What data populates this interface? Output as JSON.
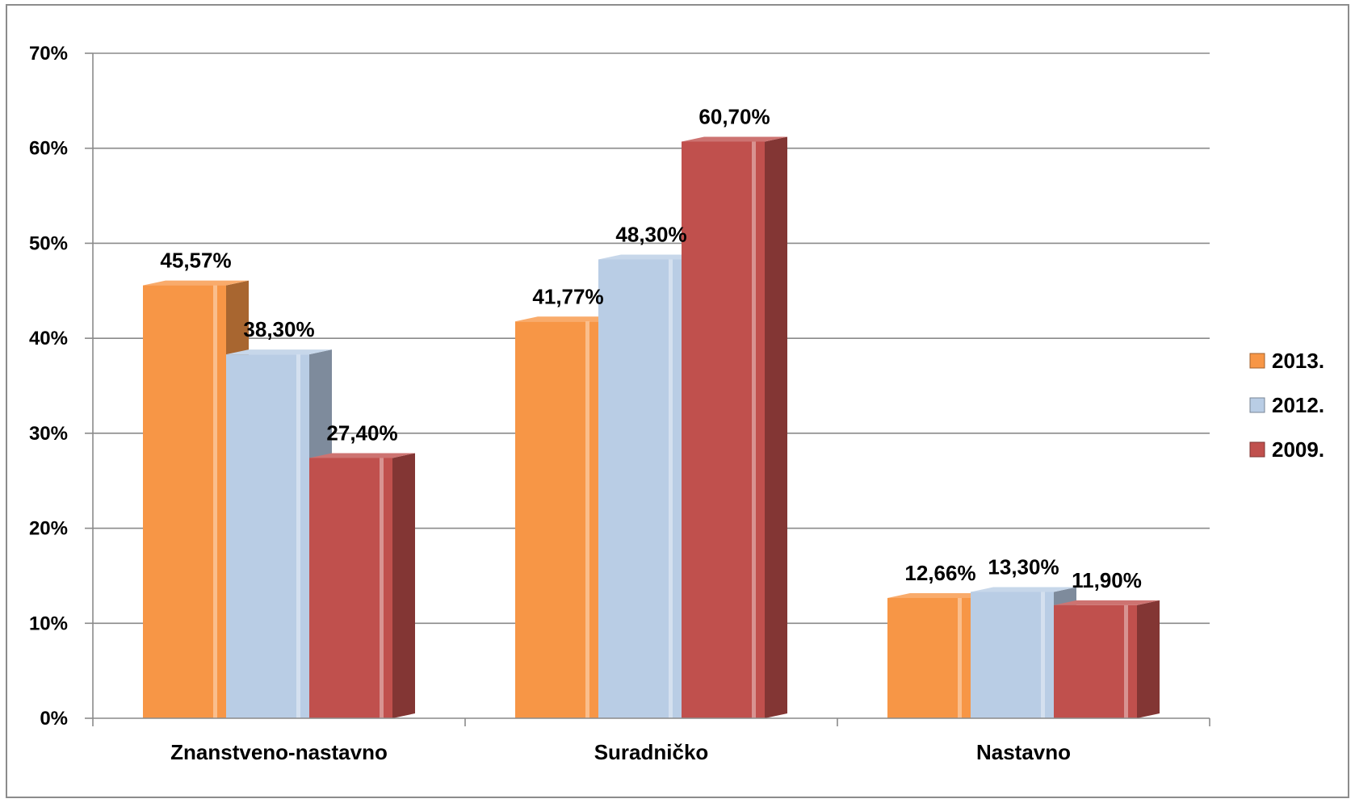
{
  "chart_data": {
    "type": "bar",
    "categories": [
      "Znanstveno-nastavno",
      "Suradničko",
      "Nastavno"
    ],
    "series": [
      {
        "name": "2013.",
        "values": [
          45.57,
          41.77,
          12.66
        ],
        "labels": [
          "45,57%",
          "41,77%",
          "12,66%"
        ],
        "color": "#F79646"
      },
      {
        "name": "2012.",
        "values": [
          38.3,
          48.3,
          13.3
        ],
        "labels": [
          "38,30%",
          "48,30%",
          "13,30%"
        ],
        "color": "#B9CDE5"
      },
      {
        "name": "2009.",
        "values": [
          27.4,
          60.7,
          11.9
        ],
        "labels": [
          "27,40%",
          "60,70%",
          "11,90%"
        ],
        "color": "#C0504D"
      }
    ],
    "ylim": [
      0,
      70
    ],
    "yticks": [
      0,
      10,
      20,
      30,
      40,
      50,
      60,
      70
    ],
    "ytick_labels": [
      "0%",
      "10%",
      "20%",
      "30%",
      "40%",
      "50%",
      "60%",
      "70%"
    ],
    "grid": true,
    "legend": "right",
    "style": "3d-clustered-column",
    "title": "",
    "xlabel": "",
    "ylabel": ""
  }
}
